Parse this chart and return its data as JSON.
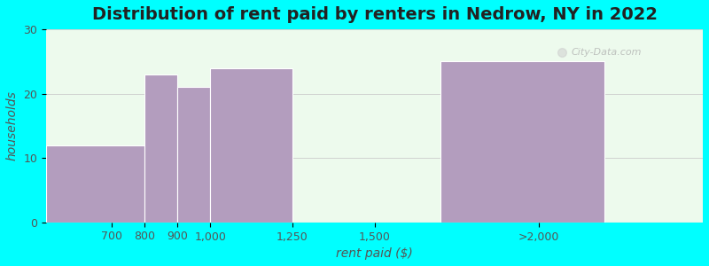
{
  "title": "Distribution of rent paid by renters in Nedrow, NY in 2022",
  "xlabel": "rent paid ($)",
  "ylabel": "households",
  "background_color": "#00FFFF",
  "plot_bg_color": "#f5fff5",
  "bar_color": "#b39dbe",
  "bar_heights": [
    12,
    23,
    21,
    24,
    25
  ],
  "bar_lefts": [
    500,
    800,
    900,
    1000,
    1700
  ],
  "bar_widths": [
    300,
    100,
    100,
    250,
    500
  ],
  "tick_positions": [
    700,
    800,
    900,
    1000,
    1250,
    1500,
    2000
  ],
  "tick_labels": [
    "700",
    "800",
    "900",
    "1,000",
    "1,250",
    "1,500",
    ">2,000"
  ],
  "xlim": [
    500,
    2500
  ],
  "ylim": [
    0,
    30
  ],
  "yticks": [
    0,
    10,
    20,
    30
  ],
  "title_fontsize": 14,
  "axis_label_fontsize": 10,
  "tick_fontsize": 9,
  "watermark_text": "City-Data.com"
}
